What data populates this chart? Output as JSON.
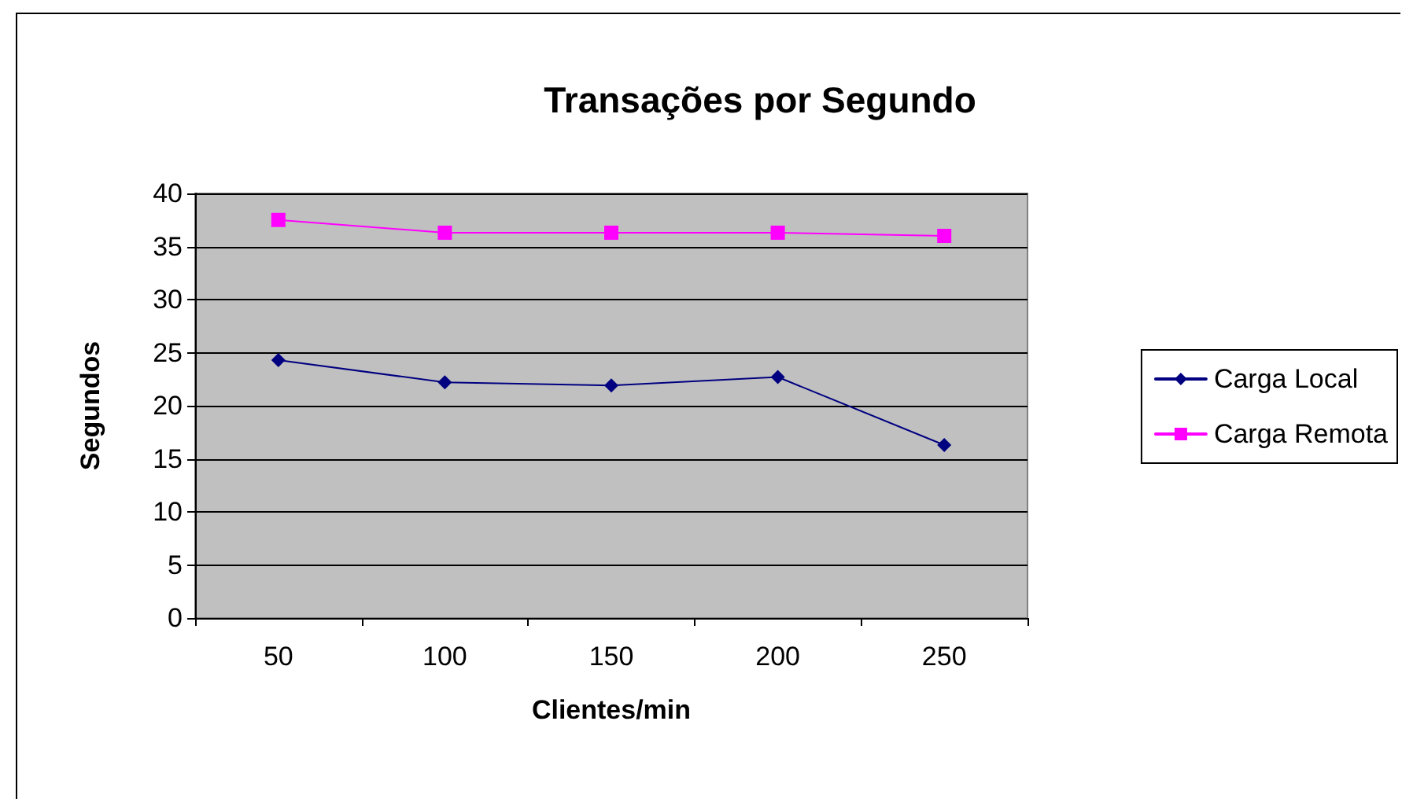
{
  "chart_data": {
    "type": "line",
    "title": "Transações por Segundo",
    "xlabel": "Clientes/min",
    "ylabel": "Segundos",
    "categories": [
      "50",
      "100",
      "150",
      "200",
      "250"
    ],
    "series": [
      {
        "name": "Carga Local",
        "color": "#000080",
        "marker": "diamond",
        "values": [
          24.3,
          22.2,
          21.9,
          22.7,
          16.3
        ]
      },
      {
        "name": "Carga Remota",
        "color": "#ff00ff",
        "marker": "square",
        "values": [
          37.5,
          36.3,
          36.3,
          36.3,
          36.0
        ]
      }
    ],
    "ylim": [
      0,
      40
    ],
    "yticks": [
      0,
      5,
      10,
      15,
      20,
      25,
      30,
      35,
      40
    ],
    "grid": "y",
    "legend": "right",
    "line_style": "solid"
  }
}
